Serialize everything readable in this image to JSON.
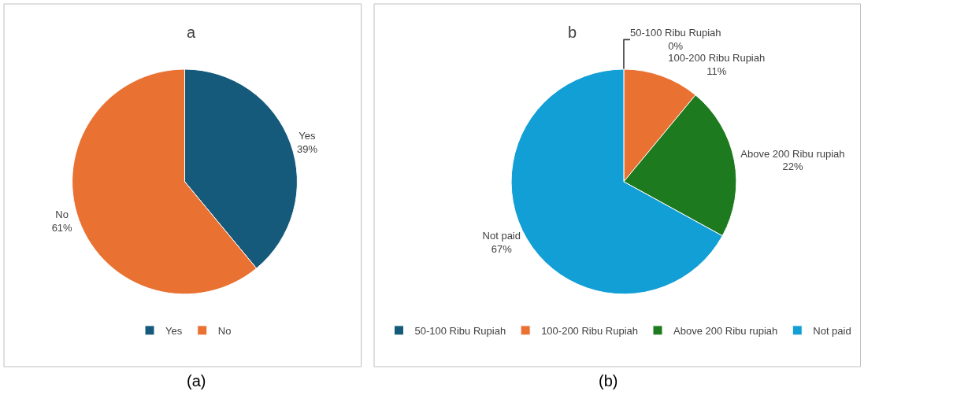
{
  "chart_data": [
    {
      "type": "pie",
      "title": "a",
      "categories": [
        "Yes",
        "No"
      ],
      "values": [
        39,
        61
      ],
      "colors": [
        "#155a7a",
        "#e97132"
      ],
      "value_labels": [
        "39%",
        "61%"
      ],
      "legend": "bottom",
      "annotations": [
        "(a)"
      ]
    },
    {
      "type": "pie",
      "title": "b",
      "categories": [
        "50-100 Ribu Rupiah",
        "100-200 Ribu Rupiah",
        "Above 200 Ribu rupiah",
        "Not paid"
      ],
      "values": [
        0,
        11,
        22,
        67
      ],
      "colors": [
        "#155a7a",
        "#e97132",
        "#1e7a1e",
        "#129fd6"
      ],
      "value_labels": [
        "0%",
        "11%",
        "22%",
        "67%"
      ],
      "legend": "bottom",
      "annotations": [
        "(b)"
      ]
    }
  ]
}
